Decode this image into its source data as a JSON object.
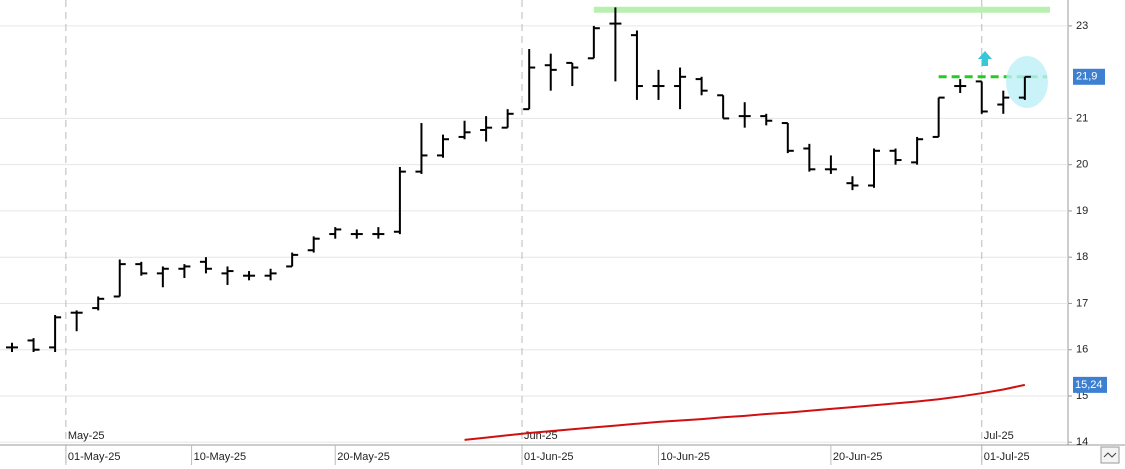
{
  "chart_data": {
    "type": "ohlc",
    "x": [
      "2025-04-28",
      "2025-04-29",
      "2025-04-30",
      "2025-05-02",
      "2025-05-05",
      "2025-05-06",
      "2025-05-07",
      "2025-05-08",
      "2025-05-09",
      "2025-05-12",
      "2025-05-13",
      "2025-05-14",
      "2025-05-15",
      "2025-05-16",
      "2025-05-19",
      "2025-05-20",
      "2025-05-21",
      "2025-05-22",
      "2025-05-23",
      "2025-05-26",
      "2025-05-27",
      "2025-05-28",
      "2025-05-29",
      "2025-05-30",
      "2025-06-02",
      "2025-06-03",
      "2025-06-04",
      "2025-06-05",
      "2025-06-06",
      "2025-06-09",
      "2025-06-10",
      "2025-06-11",
      "2025-06-12",
      "2025-06-13",
      "2025-06-16",
      "2025-06-17",
      "2025-06-18",
      "2025-06-19",
      "2025-06-20",
      "2025-06-23",
      "2025-06-24",
      "2025-06-25",
      "2025-06-26",
      "2025-06-27",
      "2025-06-30",
      "2025-07-01",
      "2025-07-02",
      "2025-07-03"
    ],
    "open": [
      16.05,
      16.2,
      16.05,
      16.8,
      16.9,
      17.15,
      17.85,
      17.65,
      17.75,
      17.9,
      17.65,
      17.6,
      17.6,
      17.8,
      18.15,
      18.5,
      18.5,
      18.5,
      18.55,
      19.85,
      20.2,
      20.6,
      20.75,
      20.8,
      21.2,
      22.15,
      22.2,
      22.3,
      23.05,
      22.8,
      21.7,
      21.7,
      21.85,
      21.5,
      21.05,
      21.05,
      20.9,
      20.35,
      19.9,
      19.6,
      19.55,
      20.3,
      20.05,
      20.6,
      21.7,
      21.8,
      21.3,
      21.45
    ],
    "high": [
      16.15,
      16.25,
      16.75,
      16.85,
      17.15,
      17.95,
      17.9,
      17.8,
      17.85,
      18.0,
      17.8,
      17.7,
      17.75,
      18.1,
      18.45,
      18.65,
      18.6,
      18.65,
      19.95,
      20.9,
      20.65,
      20.95,
      21.05,
      21.2,
      22.5,
      22.4,
      22.2,
      23.0,
      23.4,
      22.9,
      22.05,
      22.1,
      21.9,
      21.5,
      21.35,
      21.1,
      20.9,
      20.45,
      20.2,
      19.75,
      20.35,
      20.35,
      20.6,
      21.45,
      21.85,
      21.8,
      21.6,
      21.9
    ],
    "low": [
      15.95,
      15.95,
      15.95,
      16.4,
      16.85,
      17.15,
      17.6,
      17.35,
      17.55,
      17.65,
      17.4,
      17.5,
      17.5,
      17.8,
      18.1,
      18.4,
      18.4,
      18.4,
      18.5,
      19.8,
      20.15,
      20.55,
      20.5,
      20.8,
      21.2,
      21.6,
      21.7,
      22.3,
      21.8,
      21.4,
      21.4,
      21.2,
      21.5,
      21.0,
      20.8,
      20.85,
      20.25,
      19.85,
      19.8,
      19.45,
      19.5,
      20.0,
      20.0,
      20.6,
      21.55,
      21.1,
      21.1,
      21.4
    ],
    "close": [
      16.05,
      16.0,
      16.7,
      16.8,
      17.1,
      17.85,
      17.65,
      17.75,
      17.8,
      17.75,
      17.7,
      17.6,
      17.65,
      18.05,
      18.4,
      18.6,
      18.5,
      18.5,
      19.85,
      20.2,
      20.55,
      20.7,
      20.8,
      21.1,
      22.1,
      22.05,
      22.1,
      22.95,
      23.05,
      21.7,
      21.7,
      21.9,
      21.6,
      21.0,
      21.05,
      20.95,
      20.3,
      19.9,
      19.9,
      19.55,
      20.3,
      20.1,
      20.55,
      21.45,
      21.7,
      21.15,
      21.45,
      21.9
    ],
    "color": "#000000",
    "series": [
      {
        "name": "MA",
        "color": "#d01010",
        "values": [
          null,
          null,
          null,
          null,
          null,
          null,
          null,
          null,
          null,
          null,
          null,
          null,
          null,
          null,
          null,
          null,
          null,
          null,
          null,
          null,
          null,
          14.05,
          14.1,
          14.15,
          14.2,
          14.24,
          14.28,
          14.32,
          14.36,
          14.4,
          14.44,
          14.47,
          14.5,
          14.54,
          14.57,
          14.61,
          14.64,
          14.68,
          14.72,
          14.76,
          14.8,
          14.84,
          14.88,
          14.93,
          14.99,
          15.06,
          15.14,
          15.24
        ],
        "value_labels": [
          null,
          null,
          null,
          null,
          null,
          null,
          null,
          null,
          null,
          null,
          null,
          null,
          null,
          null,
          null,
          null,
          null,
          null,
          null,
          null,
          null,
          null,
          null,
          null,
          null,
          null,
          null,
          null,
          null,
          null,
          null,
          null,
          null,
          null,
          null,
          null,
          null,
          null,
          null,
          null,
          null,
          null,
          null,
          null,
          null,
          null,
          null,
          "15,24"
        ]
      }
    ],
    "hlines": [
      {
        "value": 23.35,
        "color": "#b8f0b0",
        "from": "2025-06-05"
      },
      {
        "value": 21.9,
        "label": "21,9",
        "color": "#22cc22",
        "from": "2025-06-27"
      }
    ],
    "ylim": [
      13.94,
      23.56
    ],
    "yticks": [
      14,
      15,
      16,
      17,
      18,
      19,
      20,
      21,
      23
    ],
    "xticks": [
      {
        "value": "2025-05-01",
        "label": "01-May-25"
      },
      {
        "value": "2025-05-10",
        "label": "10-May-25"
      },
      {
        "value": "2025-05-20",
        "label": "20-May-25"
      },
      {
        "value": "2025-06-01",
        "label": "01-Jun-25"
      },
      {
        "value": "2025-06-10",
        "label": "10-Jun-25"
      },
      {
        "value": "2025-06-20",
        "label": "20-Jun-25"
      },
      {
        "value": "2025-07-01",
        "label": "01-Jul-25"
      }
    ],
    "month_ticks": [
      {
        "value": "2025-05-01",
        "label": "May-25"
      },
      {
        "value": "2025-06-01",
        "label": "Jun-25"
      },
      {
        "value": "2025-07-01",
        "label": "Jul-25"
      }
    ],
    "grid": true
  }
}
